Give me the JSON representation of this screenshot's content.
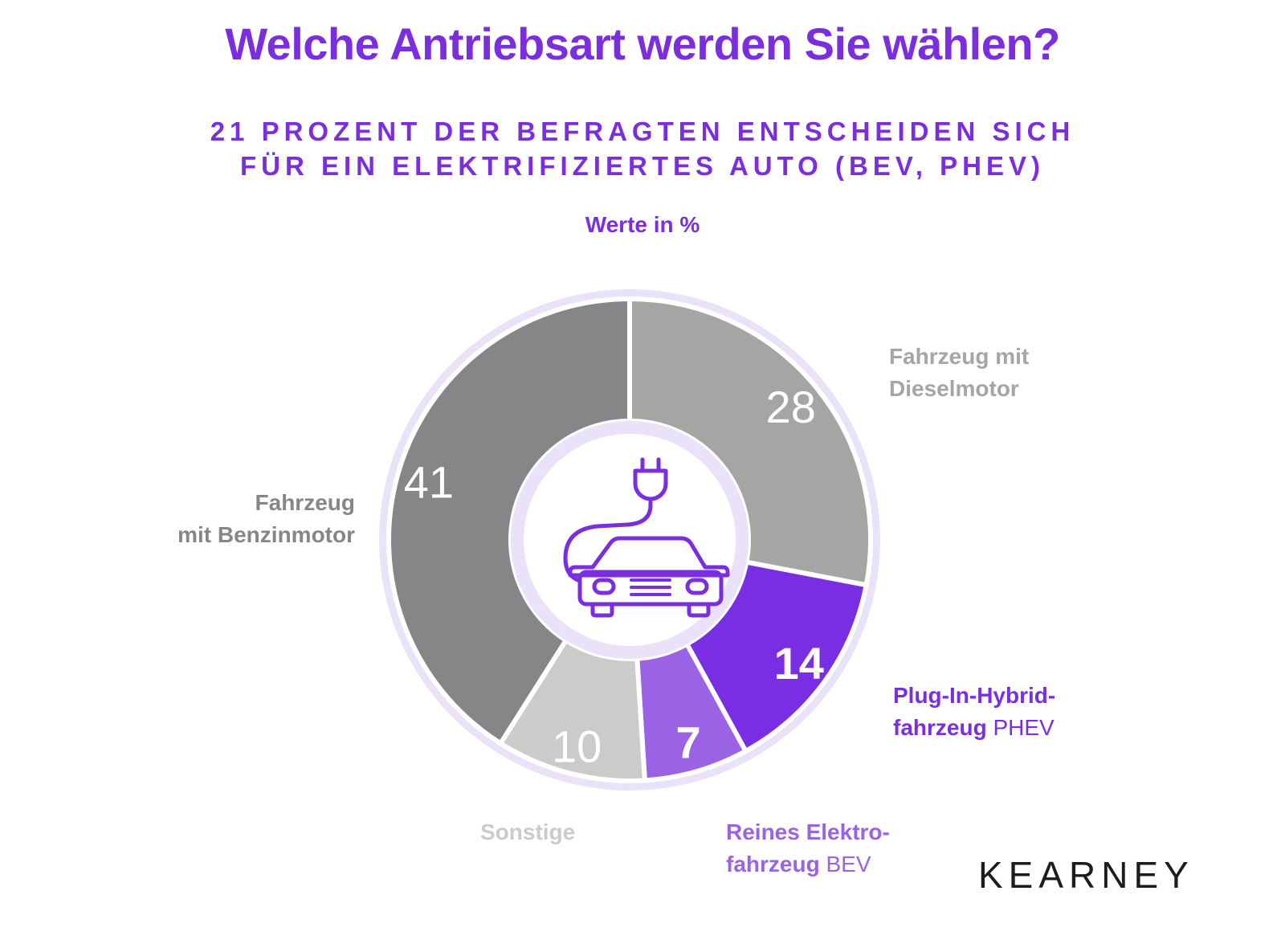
{
  "title": "Welche Antriebsart werden Sie wählen?",
  "subtitle_lines": [
    "21 PROZENT DER BEFRAGTEN ENTSCHEIDEN SICH",
    "FÜR EIN ELEKTRIFIZIERTES AUTO (BEV, PHEV)"
  ],
  "unit_note": "Werte in %",
  "brand": "KEARNEY",
  "colors": {
    "accent": "#7b2ee0",
    "ring": "#e9e2f8",
    "diesel": "#a5a6a4",
    "phev": "#7a2ee3",
    "bev": "#9a63e6",
    "sonstige": "#cbcbca",
    "benzin": "#858687"
  },
  "center_icon": "electric-car-with-plug-icon",
  "chart_data": {
    "type": "pie",
    "variant": "donut",
    "unit": "%",
    "slices": [
      {
        "key": "diesel",
        "label_bold": "Fahrzeug mit Dieselmotor",
        "label_lines": [
          "Fahrzeug mit",
          "Dieselmotor"
        ],
        "label_suffix": "",
        "value": 28
      },
      {
        "key": "phev",
        "label_lines": [
          "Plug-In-Hybrid-",
          "fahrzeug"
        ],
        "label_suffix": "PHEV",
        "value": 14
      },
      {
        "key": "bev",
        "label_lines": [
          "Reines Elektro-",
          "fahrzeug"
        ],
        "label_suffix": "BEV",
        "value": 7
      },
      {
        "key": "sonstige",
        "label_lines": [
          "Sonstige"
        ],
        "label_suffix": "",
        "value": 10
      },
      {
        "key": "benzin",
        "label_lines": [
          "Fahrzeug",
          "mit Benzinmotor"
        ],
        "label_suffix": "",
        "value": 41
      }
    ]
  }
}
